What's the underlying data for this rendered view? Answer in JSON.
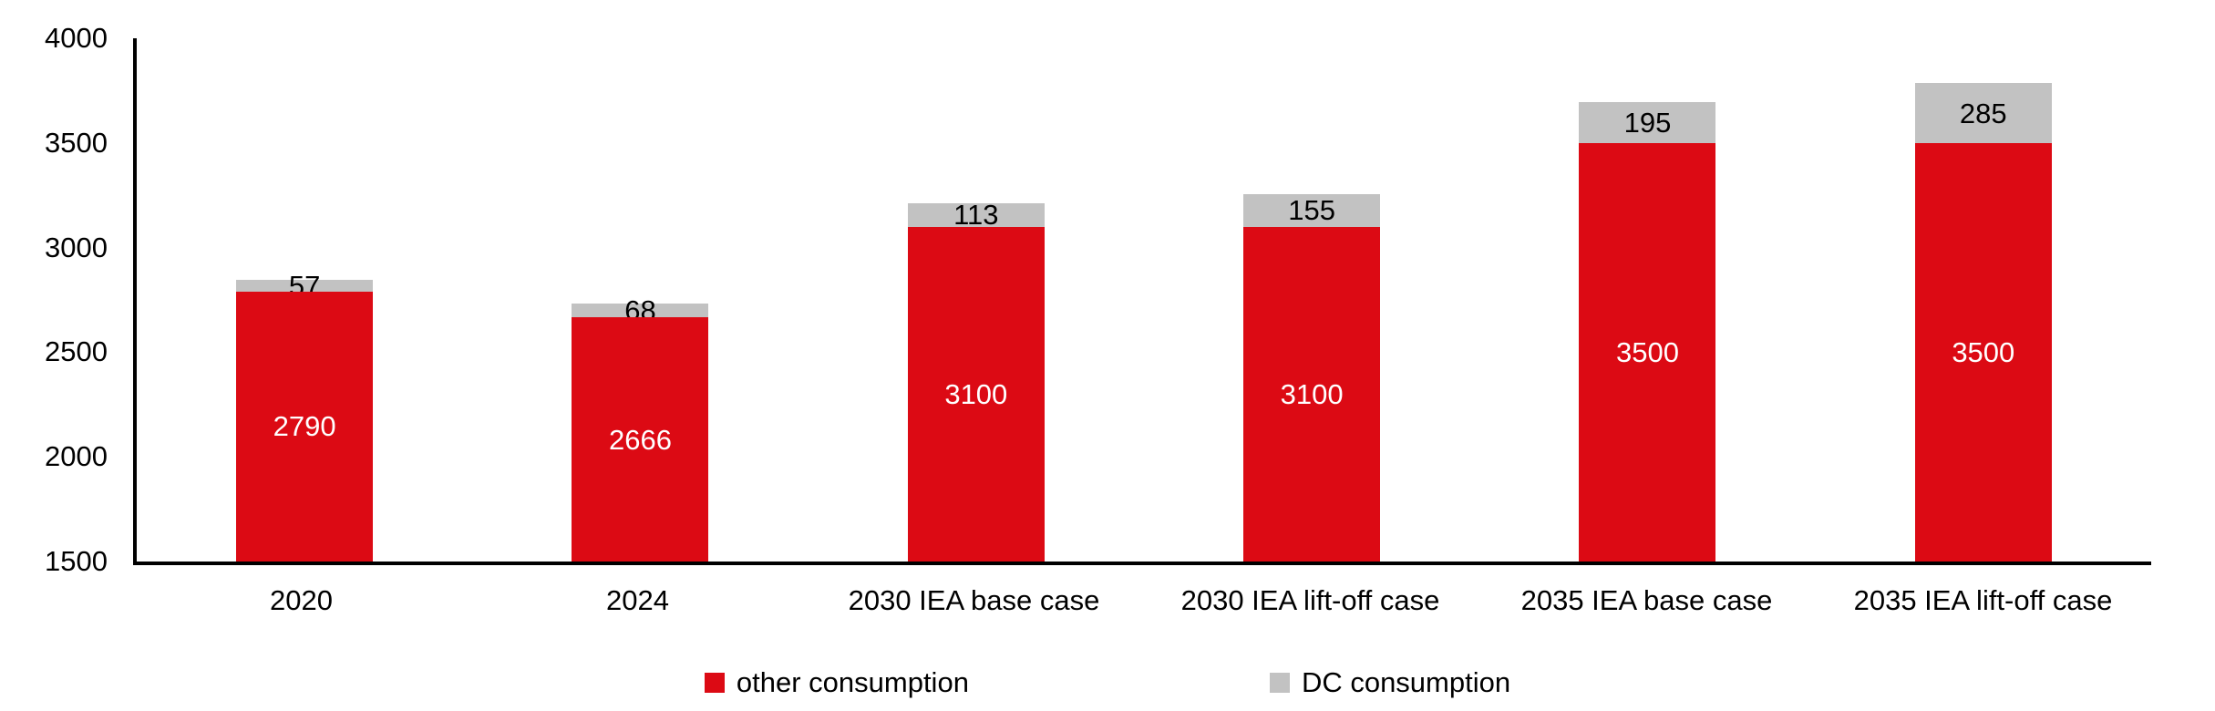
{
  "chart_data": {
    "type": "bar",
    "stacked": true,
    "title": "",
    "categories": [
      "2020",
      "2024",
      "2030 IEA base case",
      "2030 IEA lift-off case",
      "2035 IEA base case",
      "2035 IEA lift-off case"
    ],
    "series": [
      {
        "name": "other consumption",
        "color": "#DC0A14",
        "label_text_color": "#FFFFFF",
        "values": [
          2790,
          2666,
          3100,
          3100,
          3500,
          3500
        ]
      },
      {
        "name": "DC consumption",
        "color": "#C2C2C2",
        "label_text_color": "#000000",
        "values": [
          57,
          68,
          113,
          155,
          195,
          285
        ]
      }
    ],
    "y_axis": {
      "min": 1500,
      "max": 4000,
      "step": 500,
      "tick_labels": [
        "4000",
        "3500",
        "3000",
        "2500",
        "2000",
        "1500"
      ]
    },
    "x_axis": {
      "tick_labels": [
        "2020",
        "2024",
        "2030 IEA base case",
        "2030 IEA lift-off case",
        "2035 IEA base case",
        "2035 IEA lift-off case"
      ]
    },
    "legend": {
      "position": "bottom",
      "entries": [
        "other consumption",
        "DC consumption"
      ]
    },
    "grid": false,
    "data_labels": true
  },
  "colors": {
    "axis": "#000000",
    "text": "#000000",
    "background": "#FFFFFF"
  }
}
